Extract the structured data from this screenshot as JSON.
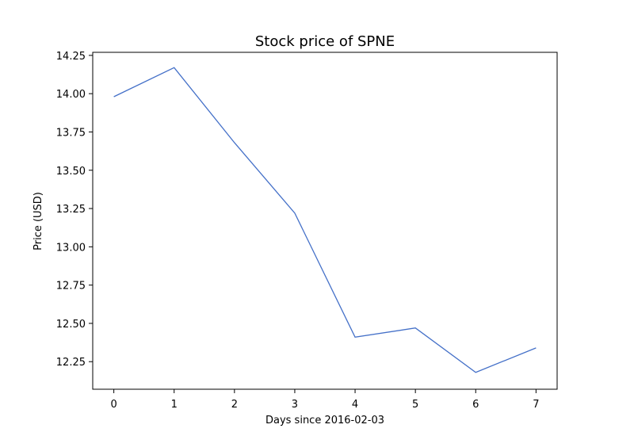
{
  "chart_data": {
    "type": "line",
    "title": "Stock price of SPNE",
    "xlabel": "Days since 2016-02-03",
    "ylabel": "Price (USD)",
    "x": [
      0,
      1,
      2,
      3,
      4,
      5,
      6,
      7
    ],
    "series": [
      {
        "values": [
          13.98,
          14.17,
          13.68,
          13.22,
          12.41,
          12.47,
          12.18,
          12.34
        ],
        "color": "#4470c8"
      }
    ],
    "xlim": [
      -0.35,
      7.35
    ],
    "ylim": [
      12.07,
      14.27
    ],
    "xticks": [
      0,
      1,
      2,
      3,
      4,
      5,
      6,
      7
    ],
    "xtick_labels": [
      "0",
      "1",
      "2",
      "3",
      "4",
      "5",
      "6",
      "7"
    ],
    "yticks": [
      12.25,
      12.5,
      12.75,
      13.0,
      13.25,
      13.5,
      13.75,
      14.0,
      14.25
    ],
    "ytick_labels": [
      "12.25",
      "12.50",
      "12.75",
      "13.00",
      "13.25",
      "13.50",
      "13.75",
      "14.00",
      "14.25"
    ],
    "grid": false,
    "legend": "none"
  }
}
